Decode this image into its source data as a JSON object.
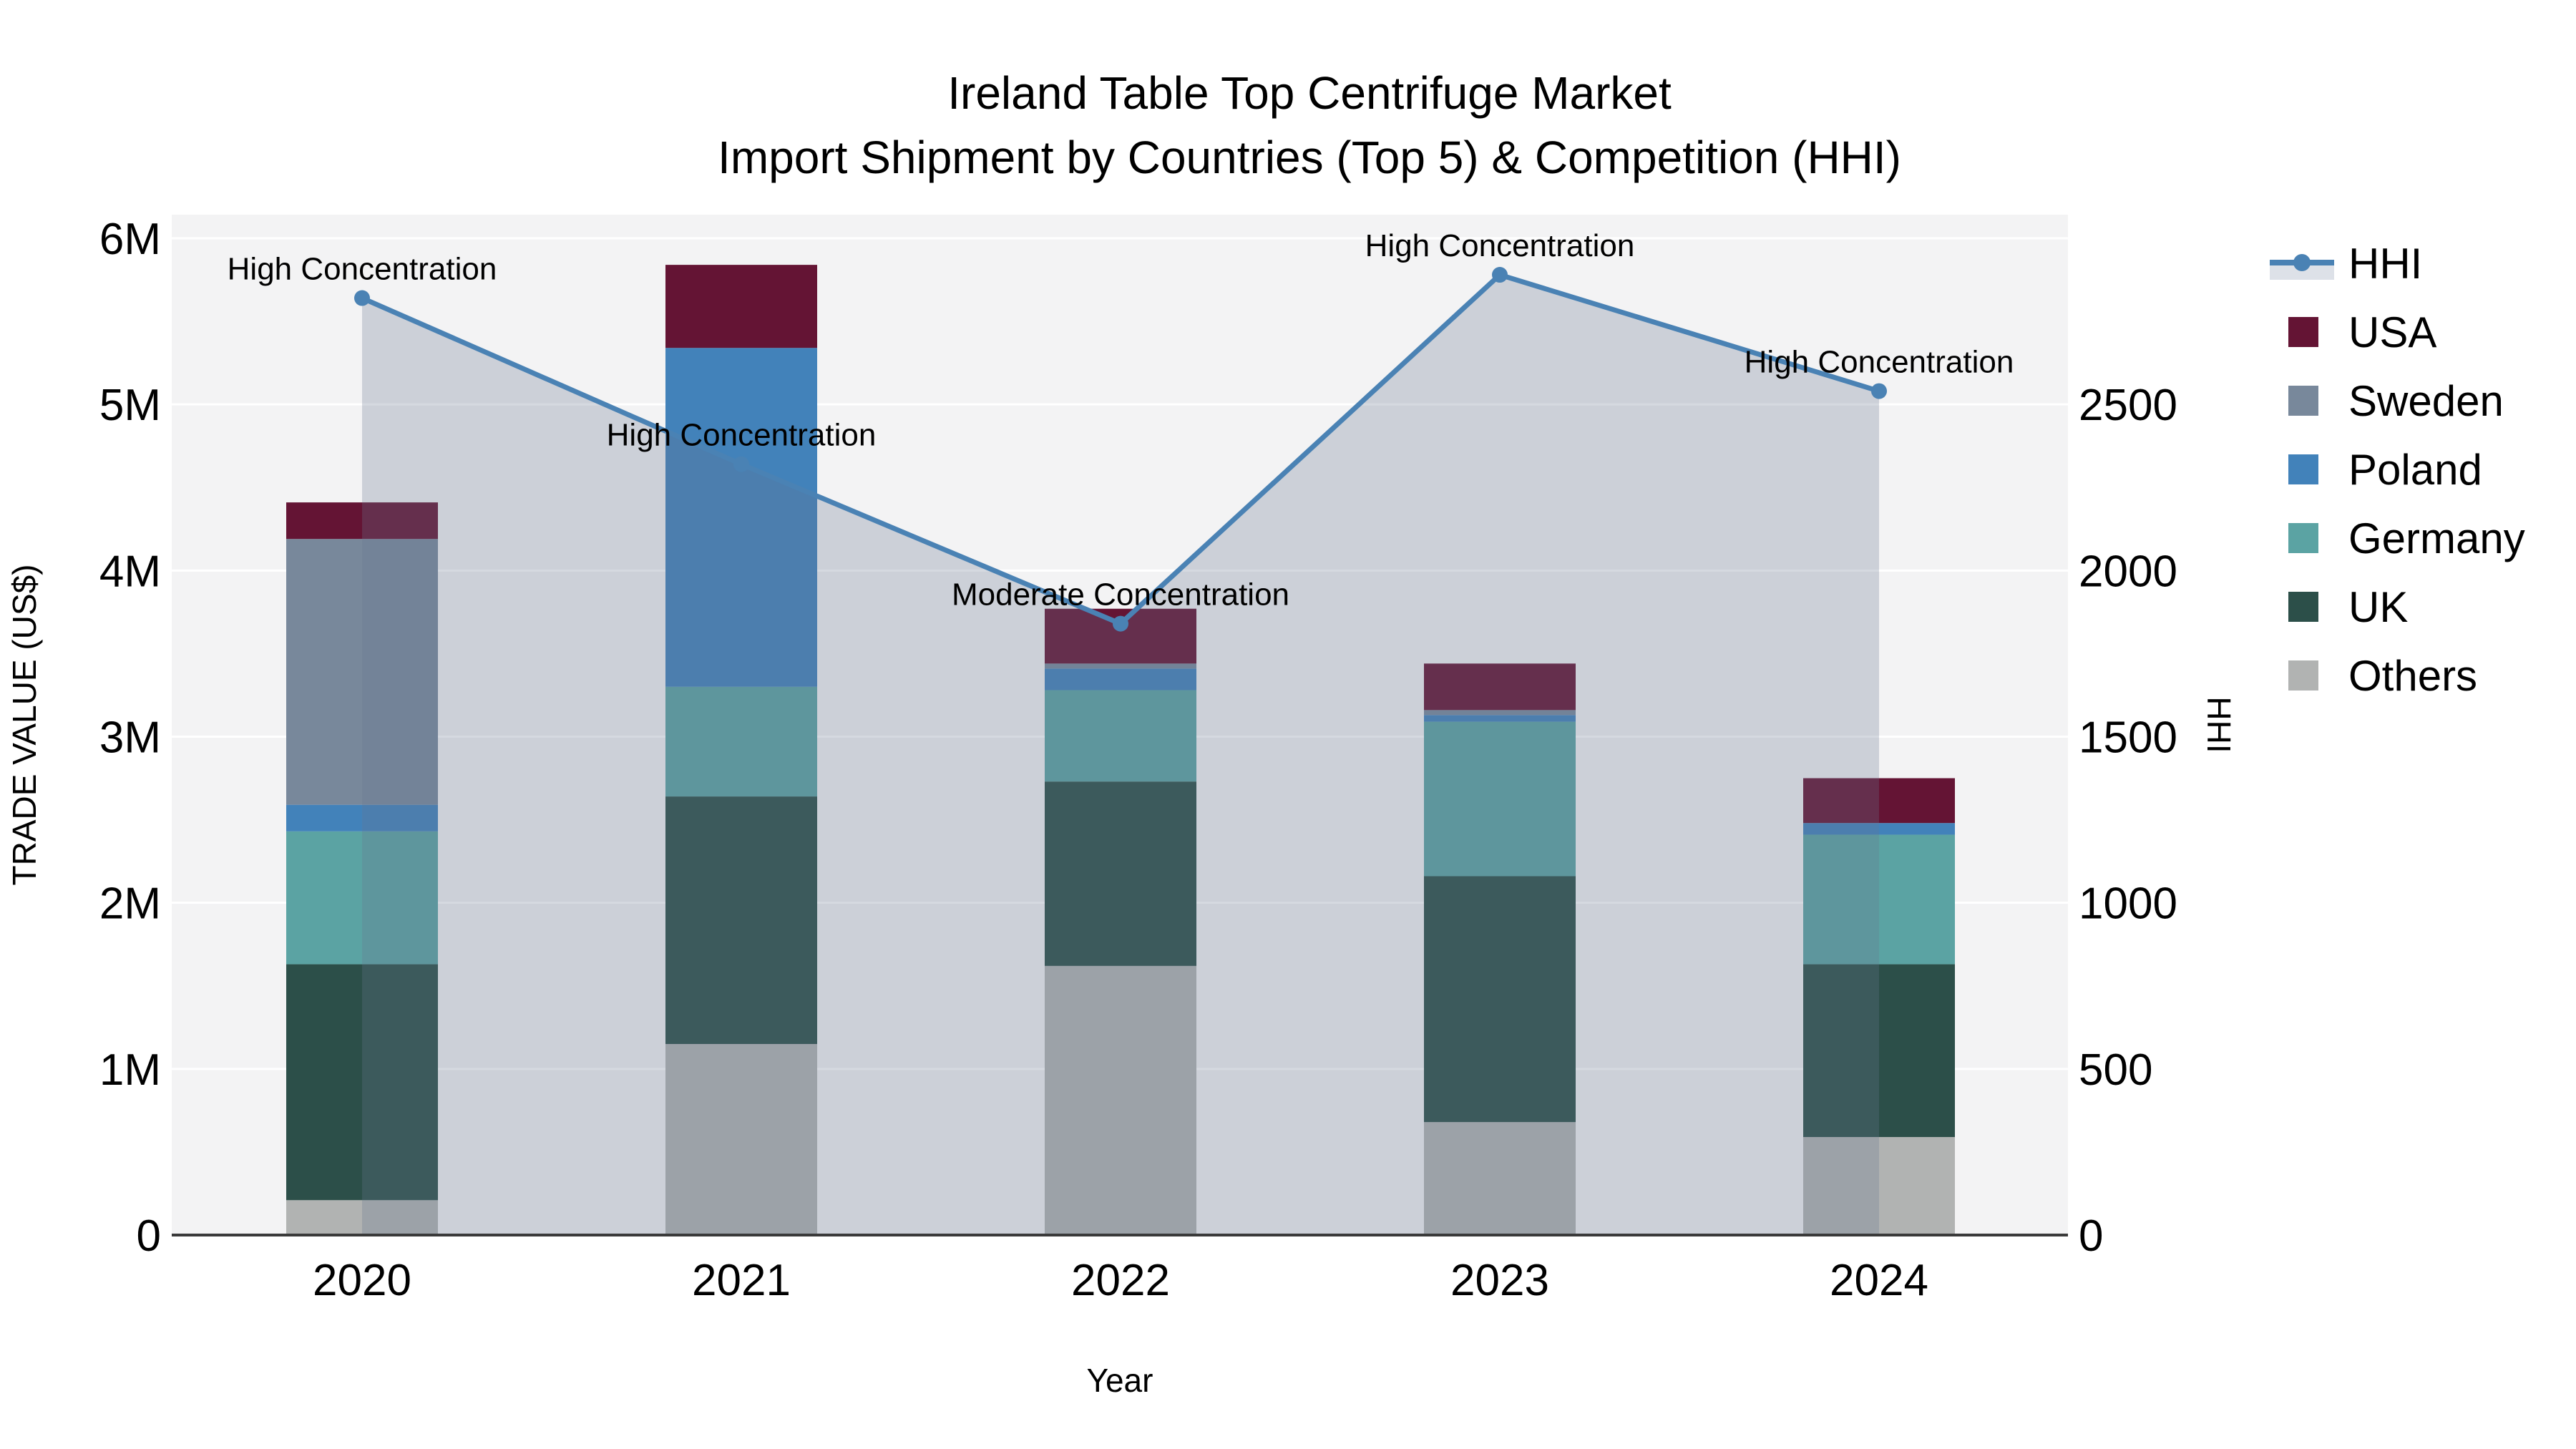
{
  "title": {
    "line1": "Ireland Table Top Centrifuge Market",
    "line2": "Import Shipment by Countries (Top 5) & Competition (HHI)"
  },
  "axes": {
    "x_title": "Year",
    "y_left_title": "TRADE VALUE (US$)",
    "y_right_title": "HHI",
    "y_left_ticks": [
      "0",
      "1M",
      "2M",
      "3M",
      "4M",
      "5M",
      "6M"
    ],
    "y_left_max_m": 6,
    "y_right_ticks": [
      0,
      500,
      1000,
      1500,
      2000,
      2500
    ],
    "y_right_max": 3000
  },
  "chart_data": {
    "type": "combo-stacked-bar-line",
    "categories": [
      "2020",
      "2021",
      "2022",
      "2023",
      "2024"
    ],
    "unit": "US$ millions",
    "stack_order": [
      "Others",
      "UK",
      "Germany",
      "Poland",
      "Sweden",
      "USA"
    ],
    "series": [
      {
        "name": "USA",
        "values": [
          0.22,
          0.5,
          0.33,
          0.28,
          0.27
        ]
      },
      {
        "name": "Sweden",
        "values": [
          1.6,
          0.0,
          0.03,
          0.03,
          0.0
        ]
      },
      {
        "name": "Poland",
        "values": [
          0.16,
          2.04,
          0.13,
          0.04,
          0.07
        ]
      },
      {
        "name": "Germany",
        "values": [
          0.8,
          0.66,
          0.55,
          0.93,
          0.78
        ]
      },
      {
        "name": "UK",
        "values": [
          1.42,
          1.49,
          1.11,
          1.48,
          1.04
        ]
      },
      {
        "name": "Others",
        "values": [
          0.21,
          1.15,
          1.62,
          0.68,
          0.59
        ]
      }
    ],
    "totals_m": [
      4.41,
      5.84,
      3.77,
      3.44,
      2.75
    ],
    "line_series": {
      "name": "HHI",
      "values": [
        2820,
        2320,
        1840,
        2890,
        2540
      ]
    },
    "annotations": [
      {
        "category": "2020",
        "text": "High Concentration"
      },
      {
        "category": "2021",
        "text": "High Concentration"
      },
      {
        "category": "2022",
        "text": "Moderate Concentration"
      },
      {
        "category": "2023",
        "text": "High Concentration"
      },
      {
        "category": "2024",
        "text": "High Concentration"
      }
    ],
    "legend": [
      "HHI",
      "USA",
      "Sweden",
      "Poland",
      "Germany",
      "UK",
      "Others"
    ],
    "legend_position": "right",
    "grid": "horizontal-white-on-gray"
  },
  "colors": {
    "USA": "#641434",
    "Sweden": "#78889b",
    "Poland": "#4282ba",
    "Germany": "#5ba3a3",
    "UK": "#2c4f49",
    "Others": "#b1b3b2",
    "hhi_line": "#4a82b4",
    "hhi_fill": "rgba(104,119,143,0.28)",
    "legend_band": "#dde1e8",
    "plot_background": "#f3f3f4",
    "gridline": "#ffffff",
    "axis_line": "#3a3a3a",
    "text": "#000000"
  }
}
